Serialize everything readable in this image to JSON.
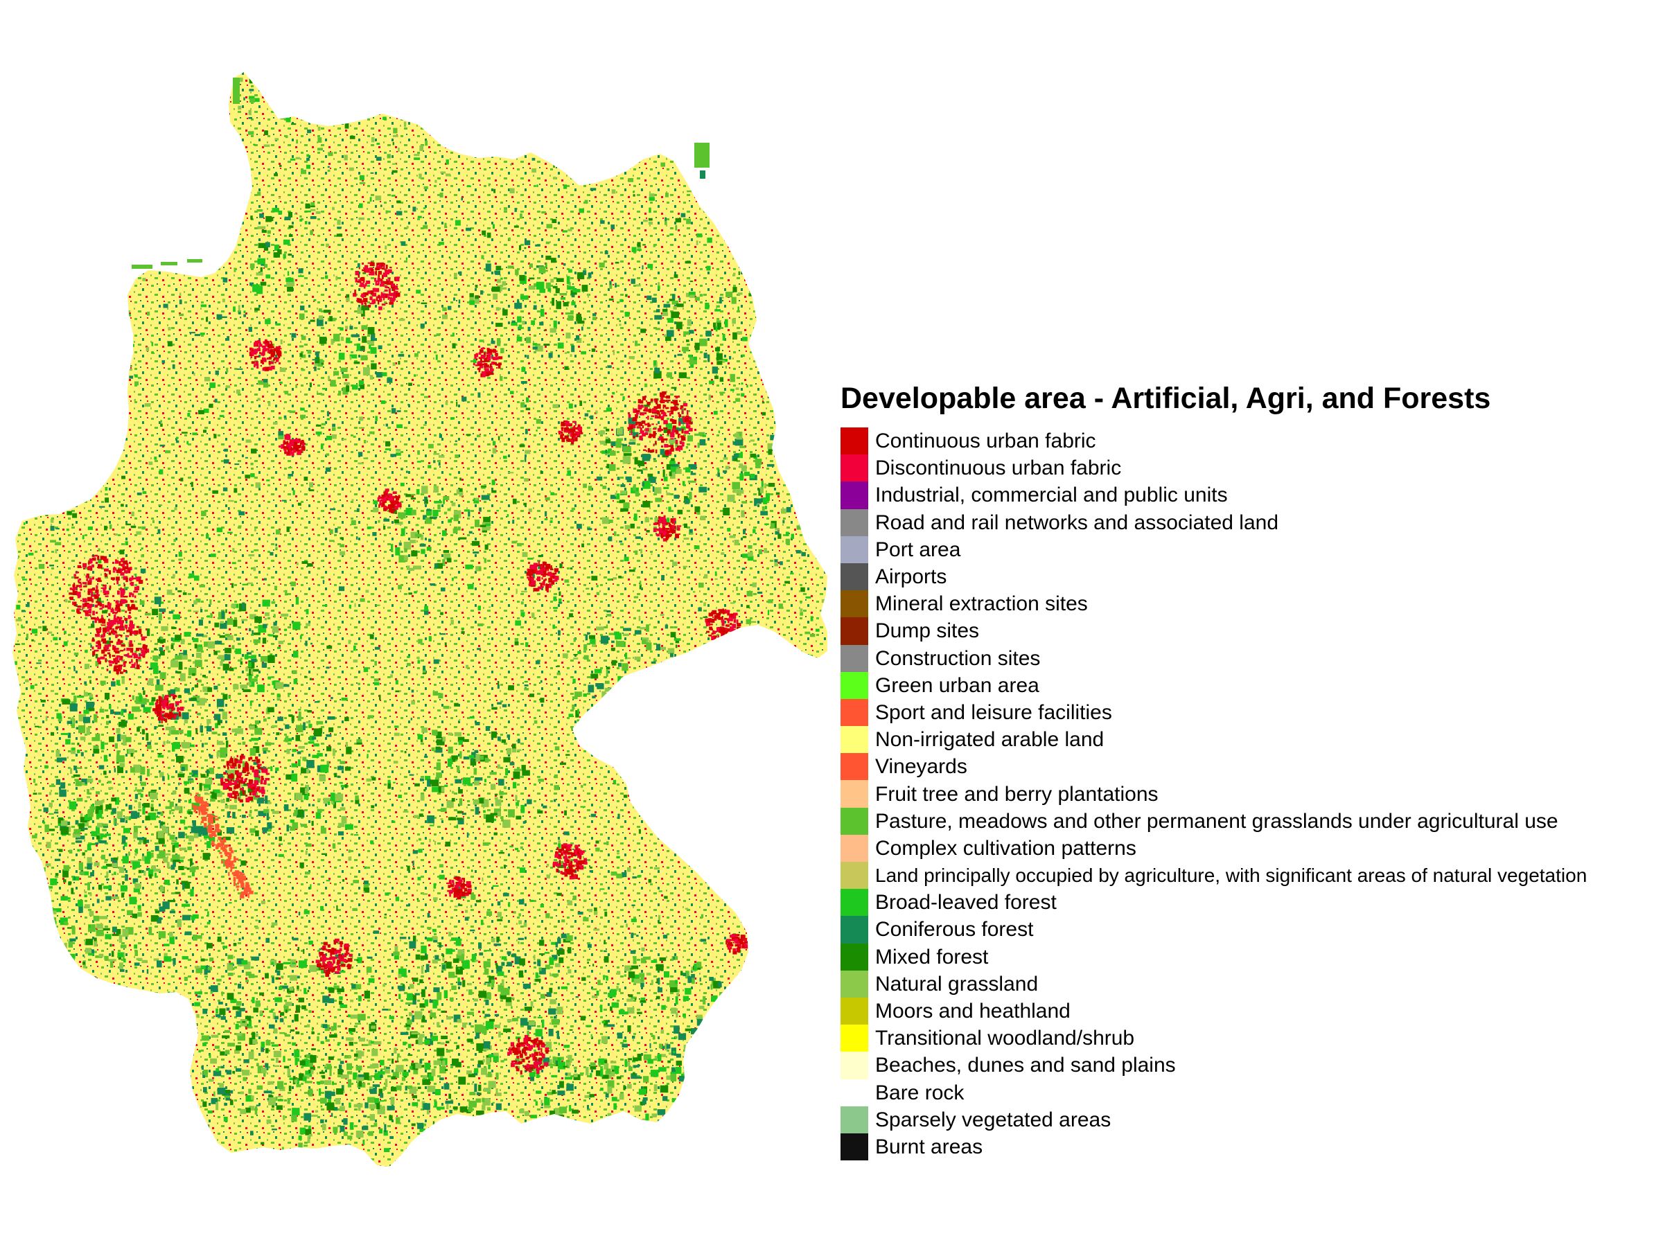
{
  "legend": {
    "title": "Developable area - Artificial, Agri, and Forests",
    "items": [
      {
        "label": "Continuous urban fabric",
        "color": "#d40000"
      },
      {
        "label": "Discontinuous urban fabric",
        "color": "#f2003a"
      },
      {
        "label": "Industrial, commercial and public units",
        "color": "#8a0099"
      },
      {
        "label": "Road and rail networks and associated land",
        "color": "#888888"
      },
      {
        "label": "Port area",
        "color": "#a4a8c0"
      },
      {
        "label": "Airports",
        "color": "#555555"
      },
      {
        "label": "Mineral extraction sites",
        "color": "#8a5500"
      },
      {
        "label": "Dump sites",
        "color": "#8e2200"
      },
      {
        "label": "Construction sites",
        "color": "#888888"
      },
      {
        "label": "Green urban area",
        "color": "#5cff1a"
      },
      {
        "label": "Sport and leisure facilities",
        "color": "#ff5533"
      },
      {
        "label": "Non-irrigated arable land",
        "color": "#ffff77"
      },
      {
        "label": "Vineyards",
        "color": "#ff5533"
      },
      {
        "label": "Fruit tree and berry plantations",
        "color": "#ffc488"
      },
      {
        "label": "Pasture, meadows and other permanent grasslands under agricultural use",
        "color": "#5cc22e"
      },
      {
        "label": "Complex cultivation patterns",
        "color": "#ffbb88"
      },
      {
        "label": "Land principally occupied by agriculture, with significant areas of natural vegetation",
        "color": "#c8c85a"
      },
      {
        "label": "Broad-leaved forest",
        "color": "#1ec81e"
      },
      {
        "label": "Coniferous forest",
        "color": "#158a55"
      },
      {
        "label": "Mixed forest",
        "color": "#1a8c00"
      },
      {
        "label": "Natural grassland",
        "color": "#8cc84a"
      },
      {
        "label": "Moors and heathland",
        "color": "#c8c800"
      },
      {
        "label": "Transitional woodland/shrub",
        "color": "#ffff00"
      },
      {
        "label": "Beaches, dunes and sand plains",
        "color": "#ffffcc"
      },
      {
        "label": "Bare rock",
        "color": "#ffffff"
      },
      {
        "label": "Sparsely vegetated areas",
        "color": "#8cc88c"
      },
      {
        "label": "Burnt areas",
        "color": "#111111"
      }
    ]
  },
  "map": {
    "base_color": "#fff37a",
    "forest_colors": [
      "#158a55",
      "#1a8c00",
      "#1ec81e",
      "#5cc22e",
      "#8cc84a"
    ],
    "urban_colors": [
      "#f2003a",
      "#d40000",
      "#ff5533"
    ]
  }
}
